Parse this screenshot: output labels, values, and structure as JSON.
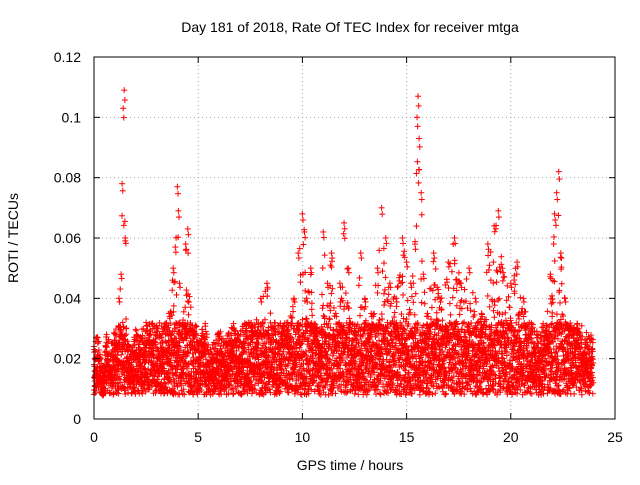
{
  "chart_data": {
    "type": "scatter",
    "title": "Day 181 of 2018, Rate Of TEC Index for receiver mtga",
    "xlabel": "GPS time / hours",
    "ylabel": "ROTI / TECUs",
    "xlim": [
      0,
      25
    ],
    "ylim": [
      0,
      0.12
    ],
    "xticks": [
      0,
      5,
      10,
      15,
      20,
      25
    ],
    "xtick_labels": [
      "0",
      "5",
      "10",
      "15",
      "20",
      "25"
    ],
    "yticks": [
      0,
      0.02,
      0.04,
      0.06,
      0.08,
      0.1,
      0.12
    ],
    "ytick_labels": [
      "0",
      "0.02",
      "0.04",
      "0.06",
      "0.08",
      "0.1",
      "0.12"
    ],
    "grid": true,
    "marker": "+",
    "series": [
      {
        "name": "ROTI",
        "color": "#ff0000",
        "x": [
          0.0,
          0.2,
          0.4,
          0.6,
          0.8,
          1.0,
          1.2,
          1.3,
          1.35,
          1.4,
          1.45,
          1.5,
          1.6,
          1.8,
          2.0,
          2.2,
          2.5,
          2.8,
          3.0,
          3.3,
          3.6,
          3.8,
          3.9,
          4.0,
          4.05,
          4.1,
          4.2,
          4.4,
          4.5,
          4.8,
          5.0,
          5.3,
          5.6,
          6.0,
          6.3,
          6.6,
          7.0,
          7.3,
          7.6,
          8.0,
          8.3,
          8.6,
          9.0,
          9.3,
          9.6,
          9.8,
          10.0,
          10.1,
          10.2,
          10.4,
          10.6,
          10.8,
          11.0,
          11.2,
          11.4,
          11.6,
          11.8,
          12.0,
          12.2,
          12.5,
          12.8,
          13.0,
          13.3,
          13.6,
          13.8,
          14.0,
          14.2,
          14.5,
          14.8,
          15.0,
          15.2,
          15.4,
          15.5,
          15.55,
          15.6,
          15.7,
          15.8,
          16.0,
          16.3,
          16.6,
          17.0,
          17.3,
          17.6,
          18.0,
          18.3,
          18.6,
          18.9,
          19.2,
          19.4,
          19.6,
          20.0,
          20.3,
          20.6,
          21.0,
          21.3,
          21.6,
          21.9,
          22.1,
          22.2,
          22.3,
          22.4,
          22.6,
          22.9,
          23.2,
          23.5,
          23.8
        ],
        "y": [
          0.018,
          0.02,
          0.008,
          0.022,
          0.015,
          0.025,
          0.04,
          0.048,
          0.078,
          0.103,
          0.109,
          0.06,
          0.02,
          0.015,
          0.022,
          0.018,
          0.032,
          0.025,
          0.03,
          0.022,
          0.035,
          0.05,
          0.057,
          0.077,
          0.069,
          0.045,
          0.02,
          0.058,
          0.063,
          0.028,
          0.02,
          0.025,
          0.015,
          0.022,
          0.018,
          0.025,
          0.02,
          0.03,
          0.028,
          0.04,
          0.045,
          0.03,
          0.025,
          0.032,
          0.04,
          0.055,
          0.068,
          0.062,
          0.04,
          0.05,
          0.03,
          0.025,
          0.062,
          0.045,
          0.055,
          0.035,
          0.045,
          0.065,
          0.05,
          0.03,
          0.055,
          0.04,
          0.035,
          0.05,
          0.07,
          0.06,
          0.045,
          0.04,
          0.06,
          0.052,
          0.045,
          0.058,
          0.1,
          0.107,
          0.093,
          0.075,
          0.048,
          0.035,
          0.055,
          0.04,
          0.052,
          0.06,
          0.045,
          0.05,
          0.04,
          0.035,
          0.058,
          0.064,
          0.069,
          0.05,
          0.045,
          0.052,
          0.04,
          0.03,
          0.02,
          0.025,
          0.048,
          0.068,
          0.075,
          0.082,
          0.055,
          0.04,
          0.025,
          0.03,
          0.022,
          0.02
        ]
      }
    ]
  }
}
